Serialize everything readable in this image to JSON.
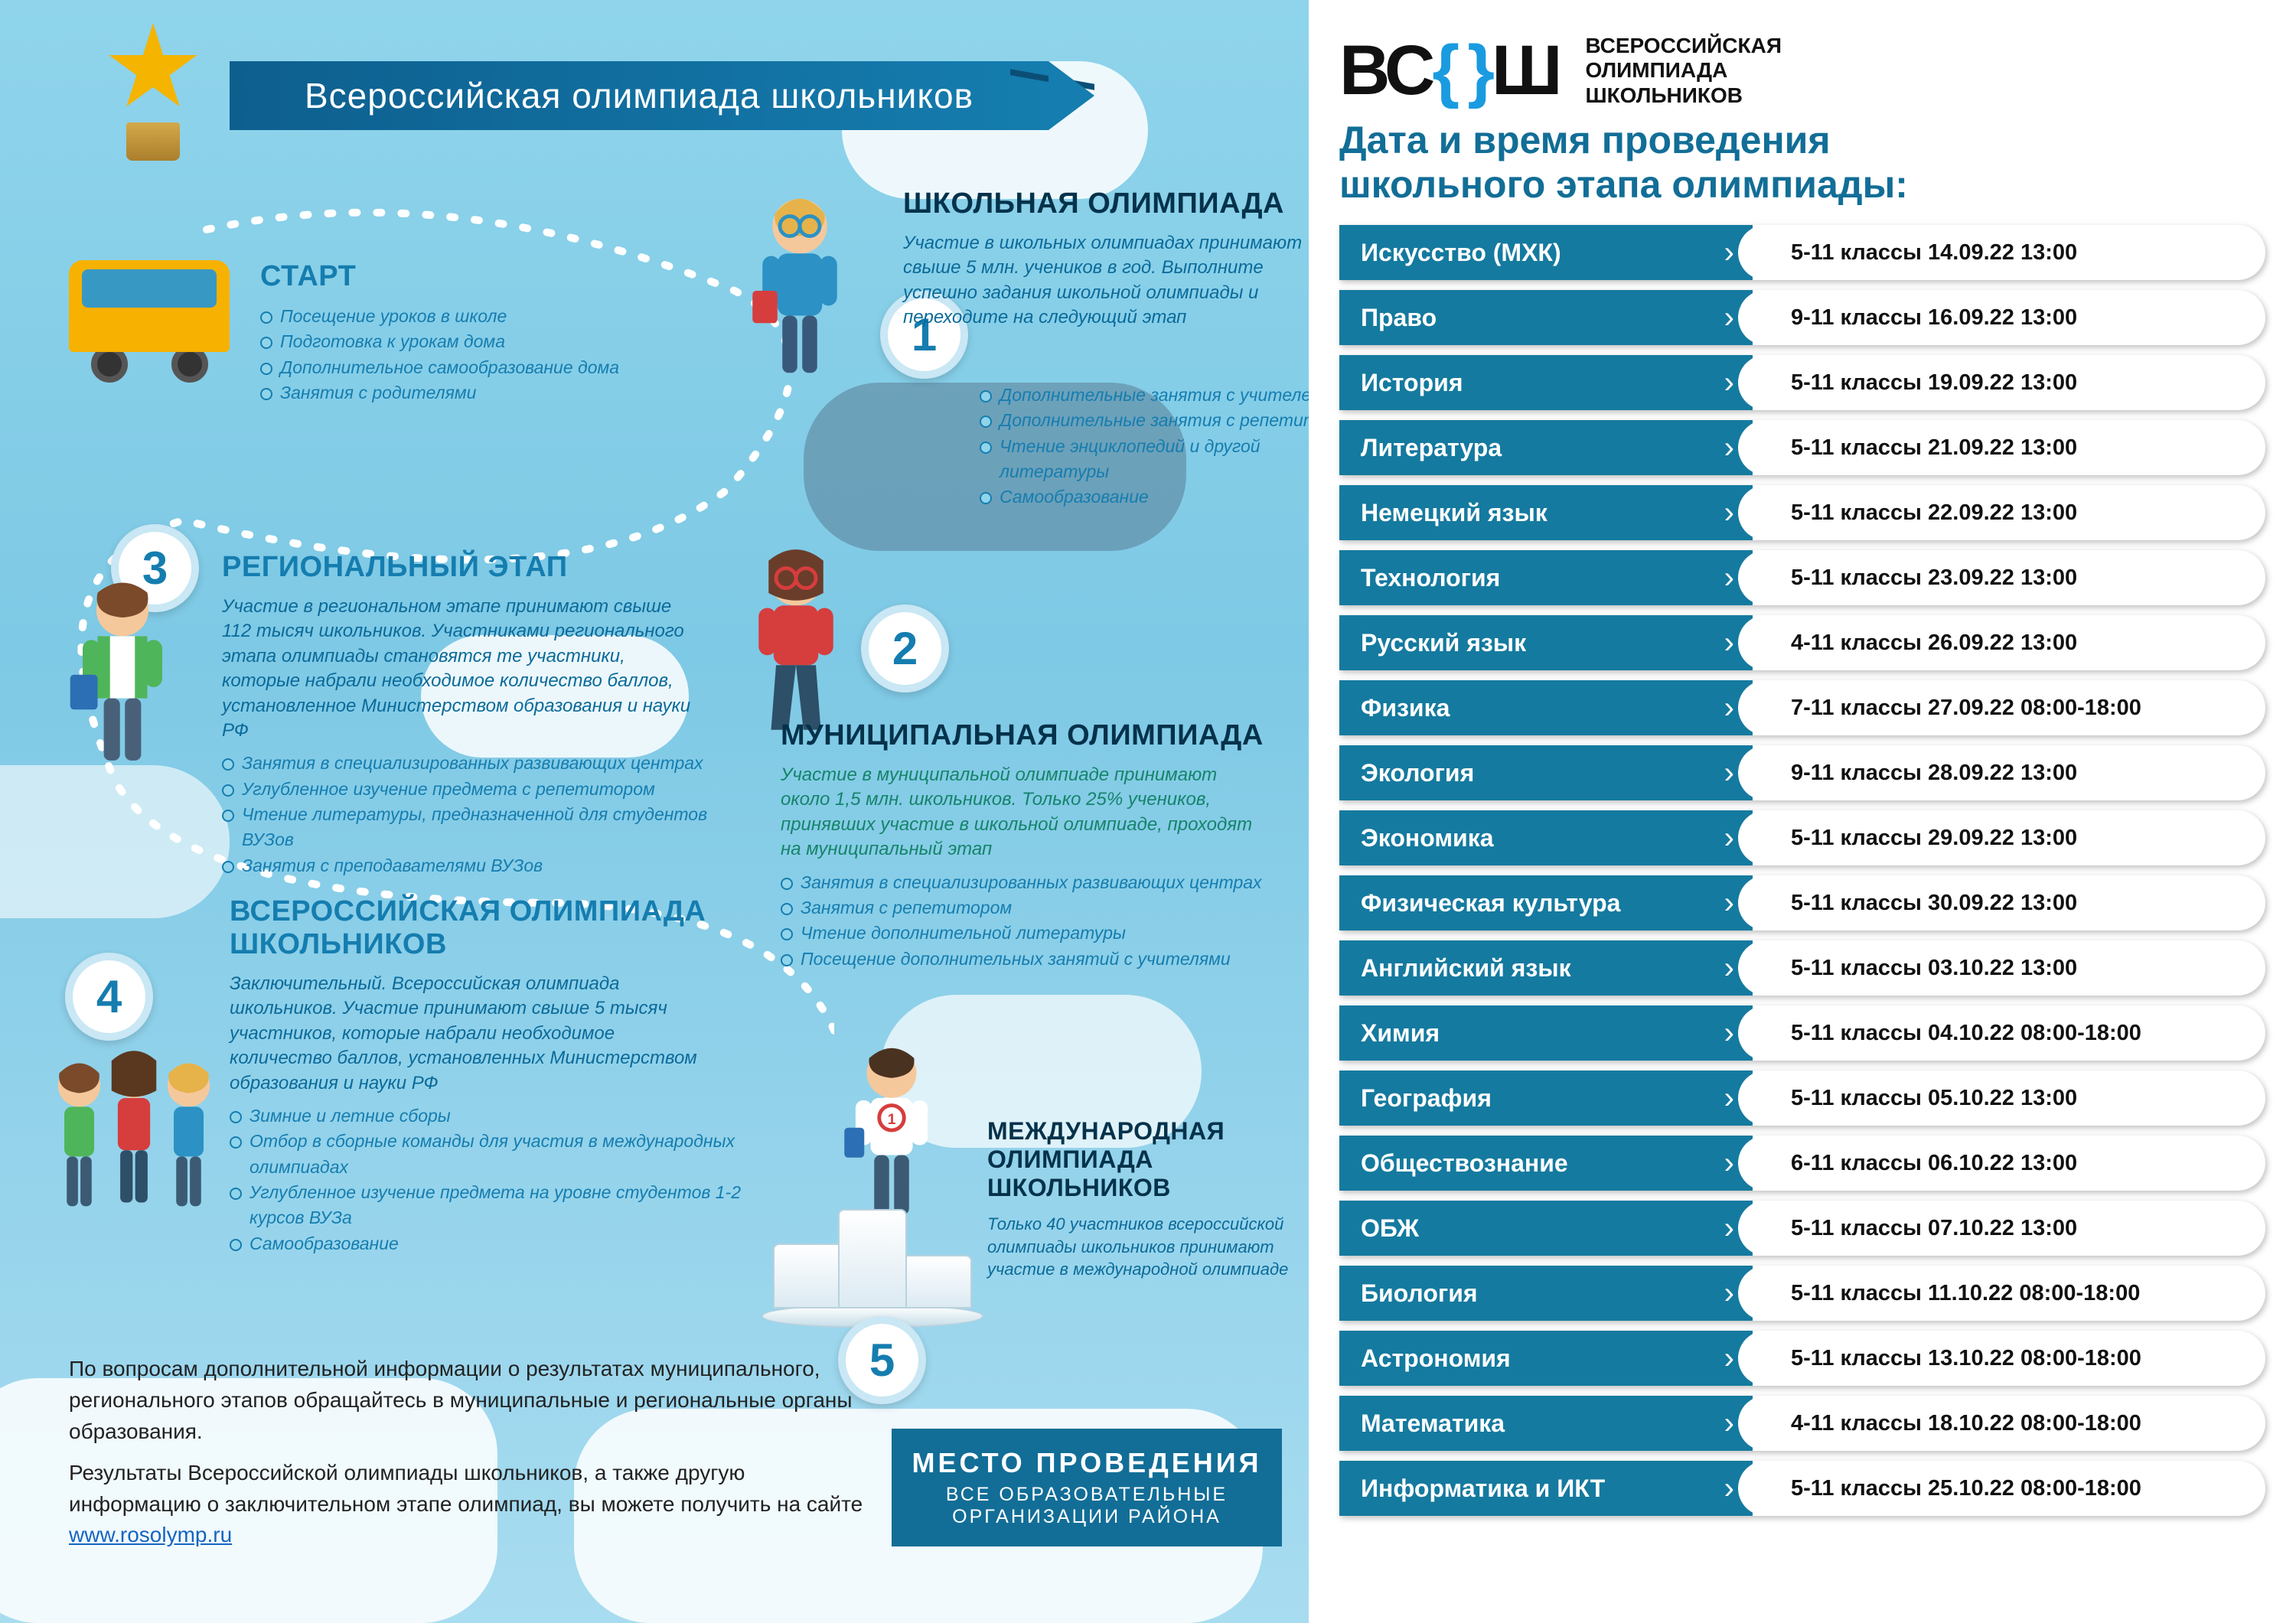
{
  "main_title": "Всероссийская олимпиада школьников",
  "colors": {
    "banner_from": "#0d5f8e",
    "banner_to": "#157daf",
    "heading": "#157daf",
    "heading_dark": "#05324b",
    "desc": "#0a6a99",
    "sky_top": "#8fd4eb",
    "row_subject_bg": "#157a9f",
    "right_heading": "#126e97",
    "brace": "#1a9be0"
  },
  "stages": {
    "start": {
      "title": "СТАРТ",
      "bullets": [
        "Посещение уроков в школе",
        "Подготовка к урокам дома",
        "Дополнительное самообразование дома",
        "Занятия с родителями"
      ]
    },
    "s1": {
      "num": "1",
      "title": "ШКОЛЬНАЯ ОЛИМПИАДА",
      "desc": "Участие в школьных олимпиадах принимают свыше 5 млн. учеников в год. Выполните успешно задания школьной олимпиады и переходите на следующий этап",
      "bullets": [
        "Дополнительные занятия с учителем",
        "Дополнительные занятия с репетитором",
        "Чтение энциклопедий и другой литературы",
        "Самообразование"
      ]
    },
    "s2": {
      "num": "2",
      "title": "МУНИЦИПАЛЬНАЯ ОЛИМПИАДА",
      "desc": "Участие в муниципальной олимпиаде принимают около 1,5 млн. школьников. Только 25% учеников, принявших участие в школьной олимпиаде, проходят на муниципальный этап",
      "bullets": [
        "Занятия в специализированных развивающих центрах",
        "Занятия с репетитором",
        "Чтение дополнительной литературы",
        "Посещение дополнительных занятий с учителями"
      ]
    },
    "s3": {
      "num": "3",
      "title": "РЕГИОНАЛЬНЫЙ ЭТАП",
      "desc": "Участие в региональном этапе принимают свыше 112 тысяч школьников. Участниками регионального этапа олимпиады становятся те участники, которые набрали необходимое количество баллов, установленное Министерством образования и науки РФ",
      "bullets": [
        "Занятия в специализированных развивающих центрах",
        "Углубленное изучение предмета с репетитором",
        "Чтение литературы, предназначенной для студентов ВУЗов",
        "Занятия с преподавателями ВУЗов"
      ]
    },
    "s4": {
      "num": "4",
      "title": "ВСЕРОССИЙСКАЯ ОЛИМПИАДА ШКОЛЬНИКОВ",
      "desc": "Заключительный. Всероссийская олимпиада школьников. Участие принимают свыше 5 тысяч участников, которые набрали необходимое количество баллов, установленных Министерством образования и науки РФ",
      "bullets": [
        "Зимние и летние сборы",
        "Отбор в сборные команды для участия в международных олимпиадах",
        "Углубленное изучение предмета на уровне студентов 1-2 курсов ВУЗа",
        "Самообразование"
      ]
    },
    "s5": {
      "num": "5",
      "title": "МЕЖДУНАРОДНАЯ ОЛИМПИАДА ШКОЛЬНИКОВ",
      "desc": "Только 40 участников всероссийской олимпиады школьников принимают участие в международной олимпиаде"
    }
  },
  "footer": {
    "p1": "По вопросам дополнительной информации о результатах муниципального, регионального этапов обращайтесь в муниципальные и региональные органы образования.",
    "p2_a": "Результаты Всероссийской олимпиады школьников, а также другую информацию о заключительном этапе олимпиад, вы можете получить на сайте ",
    "link_text": "www.rosolymp.ru"
  },
  "venue": {
    "line1": "МЕСТО ПРОВЕДЕНИЯ",
    "line2": "ВСЕ ОБРАЗОВАТЕЛЬНЫЕ ОРГАНИЗАЦИИ РАЙОНА"
  },
  "brand": {
    "logo_b": "ВС",
    "logo_sh": "Ш",
    "sub1": "ВСЕРОССИЙСКАЯ",
    "sub2": "ОЛИМПИАДА",
    "sub3": "ШКОЛЬНИКОВ"
  },
  "right_heading_l1": "Дата и время проведения",
  "right_heading_l2": "школьного этапа олимпиады:",
  "schedule": [
    {
      "subject": "Искусство (МХК)",
      "info": "5-11 классы 14.09.22 13:00"
    },
    {
      "subject": "Право",
      "info": "9-11 классы 16.09.22 13:00"
    },
    {
      "subject": "История",
      "info": "5-11 классы 19.09.22 13:00"
    },
    {
      "subject": "Литература",
      "info": "5-11 классы 21.09.22 13:00"
    },
    {
      "subject": "Немецкий язык",
      "info": "5-11 классы 22.09.22 13:00"
    },
    {
      "subject": "Технология",
      "info": "5-11 классы 23.09.22 13:00"
    },
    {
      "subject": "Русский язык",
      "info": "4-11 классы 26.09.22 13:00"
    },
    {
      "subject": "Физика",
      "info": "7-11 классы 27.09.22 08:00-18:00"
    },
    {
      "subject": "Экология",
      "info": "9-11  классы 28.09.22 13:00"
    },
    {
      "subject": "Экономика",
      "info": "5-11 классы 29.09.22 13:00"
    },
    {
      "subject": "Физическая культура",
      "info": "5-11 классы 30.09.22 13:00"
    },
    {
      "subject": "Английский язык",
      "info": "5-11 классы 03.10.22 13:00"
    },
    {
      "subject": "Химия",
      "info": "5-11 классы 04.10.22 08:00-18:00"
    },
    {
      "subject": "География",
      "info": "5-11 классы 05.10.22 13:00"
    },
    {
      "subject": "Обществознание",
      "info": "6-11 классы 06.10.22 13:00"
    },
    {
      "subject": "ОБЖ",
      "info": "5-11 классы 07.10.22 13:00"
    },
    {
      "subject": "Биология",
      "info": "5-11 классы 11.10.22 08:00-18:00"
    },
    {
      "subject": "Астрономия",
      "info": "5-11 классы 13.10.22 08:00-18:00"
    },
    {
      "subject": "Математика",
      "info": "4-11 классы 18.10.22 08:00-18:00"
    },
    {
      "subject": "Информатика и ИКТ",
      "info": "5-11 классы 25.10.22 08:00-18:00"
    }
  ]
}
